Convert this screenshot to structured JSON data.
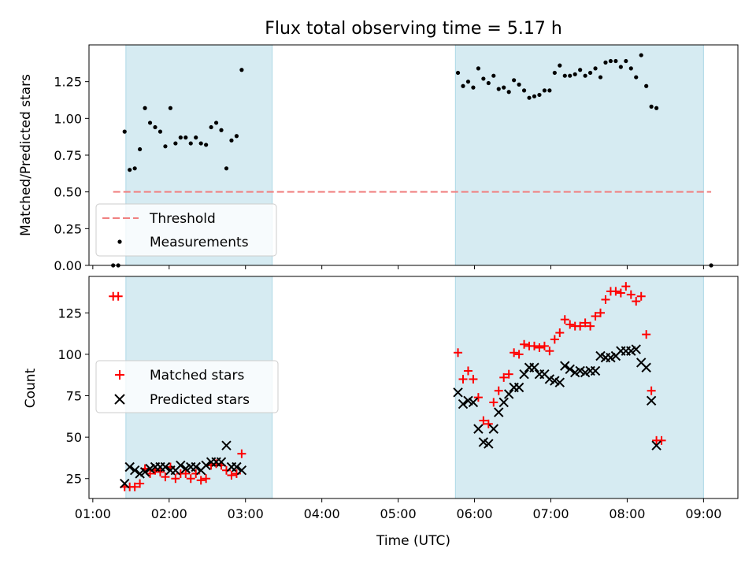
{
  "chart_data": [
    {
      "type": "scatter",
      "title": "Flux total observing time = 5.17 h",
      "xlabel": "",
      "ylabel": "Matched/Predicted stars",
      "xlim": [
        "00:57",
        "09:27"
      ],
      "ylim": [
        0,
        1.5
      ],
      "x_ticks": [
        "01:00",
        "02:00",
        "03:00",
        "04:00",
        "05:00",
        "06:00",
        "07:00",
        "08:00",
        "09:00"
      ],
      "y_ticks": [
        "0.00",
        "0.25",
        "0.50",
        "0.75",
        "1.00",
        "1.25"
      ],
      "shaded_intervals": [
        [
          "01:26",
          "03:21"
        ],
        [
          "05:45",
          "09:00"
        ]
      ],
      "threshold": {
        "name": "Threshold",
        "value": 0.5,
        "x_range": [
          "01:16",
          "09:06"
        ],
        "color": "#f08080",
        "style": "dashed"
      },
      "legend": {
        "placement": "lower-left",
        "entries": [
          "Threshold",
          "Measurements"
        ]
      },
      "series": [
        {
          "name": "Measurements",
          "color": "#000000",
          "marker": "dot",
          "points": [
            [
              "01:16",
              0.0
            ],
            [
              "01:20",
              0.0
            ],
            [
              "01:25",
              0.91
            ],
            [
              "01:29",
              0.65
            ],
            [
              "01:33",
              0.66
            ],
            [
              "01:37",
              0.79
            ],
            [
              "01:41",
              1.07
            ],
            [
              "01:45",
              0.97
            ],
            [
              "01:49",
              0.94
            ],
            [
              "01:53",
              0.91
            ],
            [
              "01:57",
              0.81
            ],
            [
              "02:01",
              1.07
            ],
            [
              "02:05",
              0.83
            ],
            [
              "02:09",
              0.87
            ],
            [
              "02:13",
              0.87
            ],
            [
              "02:17",
              0.83
            ],
            [
              "02:21",
              0.87
            ],
            [
              "02:25",
              0.83
            ],
            [
              "02:29",
              0.82
            ],
            [
              "02:33",
              0.94
            ],
            [
              "02:37",
              0.97
            ],
            [
              "02:41",
              0.92
            ],
            [
              "02:45",
              0.66
            ],
            [
              "02:49",
              0.85
            ],
            [
              "02:53",
              0.88
            ],
            [
              "02:57",
              1.33
            ],
            [
              "05:47",
              1.31
            ],
            [
              "05:51",
              1.22
            ],
            [
              "05:55",
              1.25
            ],
            [
              "05:59",
              1.21
            ],
            [
              "06:03",
              1.34
            ],
            [
              "06:07",
              1.27
            ],
            [
              "06:11",
              1.24
            ],
            [
              "06:15",
              1.29
            ],
            [
              "06:19",
              1.2
            ],
            [
              "06:23",
              1.21
            ],
            [
              "06:27",
              1.18
            ],
            [
              "06:31",
              1.26
            ],
            [
              "06:35",
              1.23
            ],
            [
              "06:39",
              1.19
            ],
            [
              "06:43",
              1.14
            ],
            [
              "06:47",
              1.15
            ],
            [
              "06:51",
              1.16
            ],
            [
              "06:55",
              1.19
            ],
            [
              "06:59",
              1.19
            ],
            [
              "07:03",
              1.31
            ],
            [
              "07:07",
              1.36
            ],
            [
              "07:11",
              1.29
            ],
            [
              "07:15",
              1.29
            ],
            [
              "07:19",
              1.3
            ],
            [
              "07:23",
              1.33
            ],
            [
              "07:27",
              1.29
            ],
            [
              "07:31",
              1.31
            ],
            [
              "07:35",
              1.34
            ],
            [
              "07:39",
              1.28
            ],
            [
              "07:43",
              1.38
            ],
            [
              "07:47",
              1.39
            ],
            [
              "07:51",
              1.39
            ],
            [
              "07:55",
              1.35
            ],
            [
              "07:59",
              1.39
            ],
            [
              "08:03",
              1.34
            ],
            [
              "08:07",
              1.28
            ],
            [
              "08:11",
              1.43
            ],
            [
              "08:15",
              1.22
            ],
            [
              "08:19",
              1.08
            ],
            [
              "08:23",
              1.07
            ],
            [
              "09:06",
              0.0
            ]
          ]
        }
      ]
    },
    {
      "type": "scatter",
      "title": "",
      "xlabel": "Time (UTC)",
      "ylabel": "Count",
      "xlim": [
        "00:57",
        "09:27"
      ],
      "ylim": [
        13,
        147
      ],
      "x_ticks": [
        "01:00",
        "02:00",
        "03:00",
        "04:00",
        "05:00",
        "06:00",
        "07:00",
        "08:00",
        "09:00"
      ],
      "y_ticks": [
        "25",
        "50",
        "75",
        "100",
        "125"
      ],
      "shaded_intervals": [
        [
          "01:26",
          "03:21"
        ],
        [
          "05:45",
          "09:00"
        ]
      ],
      "legend": {
        "placement": "center-left",
        "entries": [
          "Matched stars",
          "Predicted stars"
        ]
      },
      "series": [
        {
          "name": "Matched stars",
          "color": "#ff0000",
          "marker": "plus",
          "points": [
            [
              "01:16",
              135
            ],
            [
              "01:20",
              135
            ],
            [
              "01:25",
              20
            ],
            [
              "01:29",
              20
            ],
            [
              "01:33",
              20
            ],
            [
              "01:37",
              22
            ],
            [
              "01:41",
              31
            ],
            [
              "01:45",
              28
            ],
            [
              "01:49",
              30
            ],
            [
              "01:53",
              29
            ],
            [
              "01:57",
              26
            ],
            [
              "02:01",
              32
            ],
            [
              "02:05",
              25
            ],
            [
              "02:09",
              28
            ],
            [
              "02:13",
              28
            ],
            [
              "02:17",
              25
            ],
            [
              "02:21",
              28
            ],
            [
              "02:25",
              24
            ],
            [
              "02:29",
              25
            ],
            [
              "02:33",
              33
            ],
            [
              "02:37",
              34
            ],
            [
              "02:41",
              33
            ],
            [
              "02:45",
              30
            ],
            [
              "02:49",
              27
            ],
            [
              "02:53",
              28
            ],
            [
              "02:57",
              40
            ],
            [
              "05:47",
              101
            ],
            [
              "05:51",
              85
            ],
            [
              "05:55",
              90
            ],
            [
              "05:59",
              85
            ],
            [
              "06:03",
              74
            ],
            [
              "06:07",
              60
            ],
            [
              "06:11",
              58
            ],
            [
              "06:15",
              71
            ],
            [
              "06:19",
              78
            ],
            [
              "06:23",
              86
            ],
            [
              "06:27",
              88
            ],
            [
              "06:31",
              101
            ],
            [
              "06:35",
              100
            ],
            [
              "06:39",
              106
            ],
            [
              "06:43",
              105
            ],
            [
              "06:47",
              105
            ],
            [
              "06:51",
              104
            ],
            [
              "06:55",
              105
            ],
            [
              "06:59",
              102
            ],
            [
              "07:03",
              109
            ],
            [
              "07:07",
              113
            ],
            [
              "07:11",
              121
            ],
            [
              "07:15",
              118
            ],
            [
              "07:19",
              117
            ],
            [
              "07:23",
              117
            ],
            [
              "07:27",
              119
            ],
            [
              "07:31",
              117
            ],
            [
              "07:35",
              123
            ],
            [
              "07:39",
              125
            ],
            [
              "07:43",
              133
            ],
            [
              "07:47",
              138
            ],
            [
              "07:51",
              138
            ],
            [
              "07:55",
              137
            ],
            [
              "07:59",
              141
            ],
            [
              "08:03",
              136
            ],
            [
              "08:07",
              132
            ],
            [
              "08:11",
              135
            ],
            [
              "08:15",
              112
            ],
            [
              "08:19",
              78
            ],
            [
              "08:23",
              48
            ],
            [
              "08:27",
              48
            ]
          ]
        },
        {
          "name": "Predicted stars",
          "color": "#000000",
          "marker": "x",
          "points": [
            [
              "01:25",
              22
            ],
            [
              "01:29",
              32
            ],
            [
              "01:33",
              30
            ],
            [
              "01:37",
              28
            ],
            [
              "01:41",
              29
            ],
            [
              "01:45",
              31
            ],
            [
              "01:49",
              32
            ],
            [
              "01:53",
              32
            ],
            [
              "01:57",
              32
            ],
            [
              "02:01",
              30
            ],
            [
              "02:05",
              30
            ],
            [
              "02:09",
              33
            ],
            [
              "02:13",
              31
            ],
            [
              "02:17",
              32
            ],
            [
              "02:21",
              32
            ],
            [
              "02:25",
              30
            ],
            [
              "02:29",
              33
            ],
            [
              "02:33",
              35
            ],
            [
              "02:37",
              35
            ],
            [
              "02:41",
              35
            ],
            [
              "02:45",
              45
            ],
            [
              "02:49",
              32
            ],
            [
              "02:53",
              32
            ],
            [
              "02:57",
              30
            ],
            [
              "05:47",
              77
            ],
            [
              "05:51",
              70
            ],
            [
              "05:55",
              72
            ],
            [
              "05:59",
              71
            ],
            [
              "06:03",
              55
            ],
            [
              "06:07",
              47
            ],
            [
              "06:11",
              46
            ],
            [
              "06:15",
              55
            ],
            [
              "06:19",
              65
            ],
            [
              "06:23",
              71
            ],
            [
              "06:27",
              76
            ],
            [
              "06:31",
              80
            ],
            [
              "06:35",
              80
            ],
            [
              "06:39",
              88
            ],
            [
              "06:43",
              92
            ],
            [
              "06:47",
              92
            ],
            [
              "06:51",
              88
            ],
            [
              "06:55",
              88
            ],
            [
              "06:59",
              85
            ],
            [
              "07:03",
              84
            ],
            [
              "07:07",
              83
            ],
            [
              "07:11",
              93
            ],
            [
              "07:15",
              91
            ],
            [
              "07:19",
              89
            ],
            [
              "07:23",
              90
            ],
            [
              "07:27",
              89
            ],
            [
              "07:31",
              90
            ],
            [
              "07:35",
              90
            ],
            [
              "07:39",
              99
            ],
            [
              "07:43",
              98
            ],
            [
              "07:47",
              98
            ],
            [
              "07:51",
              99
            ],
            [
              "07:55",
              102
            ],
            [
              "07:59",
              102
            ],
            [
              "08:03",
              102
            ],
            [
              "08:07",
              103
            ],
            [
              "08:11",
              95
            ],
            [
              "08:15",
              92
            ],
            [
              "08:19",
              72
            ],
            [
              "08:23",
              45
            ]
          ]
        }
      ]
    }
  ]
}
